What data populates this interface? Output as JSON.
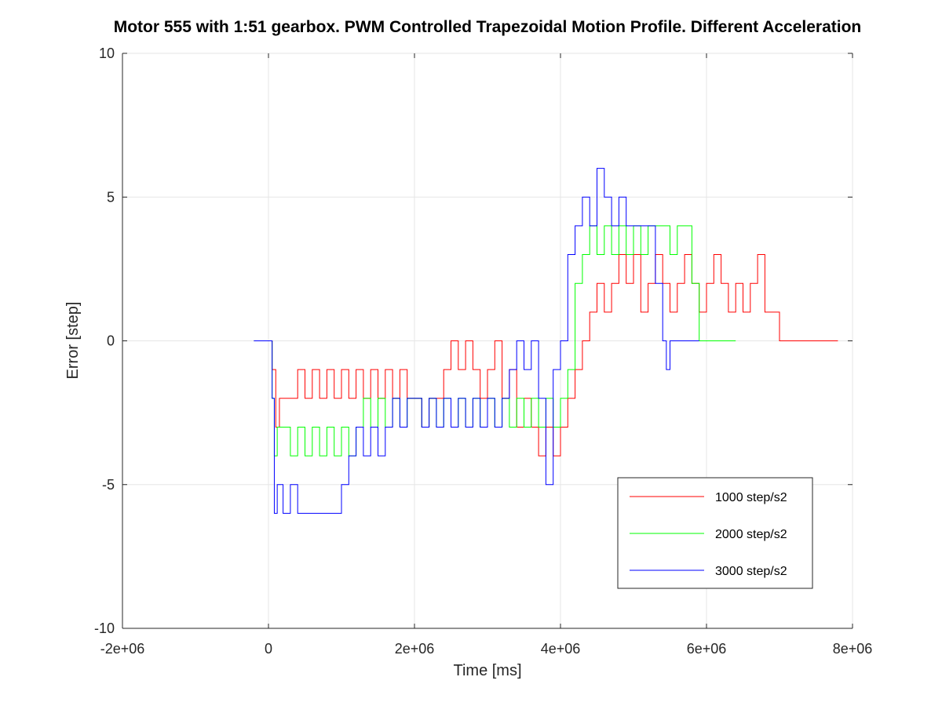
{
  "chart_data": {
    "type": "line",
    "title": "Motor 555 with 1:51 gearbox. PWM Controlled Trapezoidal Motion Profile. Different Acceleration",
    "xlabel": "Time [ms]",
    "ylabel": "Error [step]",
    "xlim": [
      -2000000,
      8000000
    ],
    "ylim": [
      -10,
      10
    ],
    "xticks": [
      -2000000,
      0,
      2000000,
      4000000,
      6000000,
      8000000
    ],
    "xtick_labels": [
      "-2e+06",
      "0",
      "2e+06",
      "4e+06",
      "6e+06",
      "8e+06"
    ],
    "yticks": [
      -10,
      -5,
      0,
      5,
      10
    ],
    "ytick_labels": [
      "-10",
      "-5",
      "0",
      "5",
      "10"
    ],
    "grid": true,
    "legend_position": "bottom-right",
    "series": [
      {
        "name": "1000 step/s2",
        "color": "#ff0000",
        "x": [
          -200000,
          0,
          20000,
          50000,
          100000,
          150000,
          200000,
          300000,
          400000,
          500000,
          600000,
          700000,
          800000,
          900000,
          1000000,
          1100000,
          1200000,
          1300000,
          1400000,
          1500000,
          1600000,
          1700000,
          1800000,
          1900000,
          2000000,
          2100000,
          2200000,
          2300000,
          2400000,
          2500000,
          2600000,
          2700000,
          2800000,
          2900000,
          3000000,
          3100000,
          3200000,
          3300000,
          3400000,
          3500000,
          3600000,
          3700000,
          3800000,
          3900000,
          4000000,
          4100000,
          4200000,
          4300000,
          4400000,
          4500000,
          4600000,
          4700000,
          4800000,
          4900000,
          5000000,
          5100000,
          5200000,
          5300000,
          5400000,
          5500000,
          5600000,
          5700000,
          5800000,
          5900000,
          6000000,
          6100000,
          6200000,
          6300000,
          6400000,
          6500000,
          6600000,
          6700000,
          6800000,
          6900000,
          7000000,
          7100000,
          7400000,
          7800000
        ],
        "y": [
          0,
          0,
          0,
          -1,
          -3,
          -2,
          -2,
          -2,
          -1,
          -2,
          -1,
          -2,
          -1,
          -2,
          -1,
          -2,
          -1,
          -2,
          -1,
          -2,
          -1,
          -2,
          -1,
          -2,
          -2,
          -3,
          -2,
          -2,
          -1,
          0,
          -1,
          0,
          -1,
          -2,
          -1,
          0,
          -2,
          -1,
          -3,
          -2,
          -3,
          -4,
          -3,
          -4,
          -3,
          -2,
          -1,
          0,
          1,
          2,
          1,
          2,
          3,
          2,
          3,
          1,
          2,
          3,
          2,
          1,
          2,
          3,
          2,
          1,
          2,
          3,
          2,
          1,
          2,
          1,
          2,
          3,
          1,
          1,
          0,
          0,
          0,
          0
        ]
      },
      {
        "name": "2000 step/s2",
        "color": "#00ff00",
        "x": [
          -200000,
          0,
          20000,
          50000,
          80000,
          120000,
          200000,
          300000,
          400000,
          500000,
          600000,
          700000,
          800000,
          900000,
          1000000,
          1100000,
          1200000,
          1300000,
          1400000,
          1500000,
          1600000,
          1700000,
          1800000,
          1900000,
          2000000,
          2100000,
          2200000,
          2300000,
          2400000,
          2500000,
          2600000,
          2700000,
          2800000,
          2900000,
          3000000,
          3100000,
          3200000,
          3300000,
          3400000,
          3500000,
          3600000,
          3700000,
          3800000,
          3900000,
          4000000,
          4100000,
          4200000,
          4300000,
          4400000,
          4500000,
          4600000,
          4700000,
          4800000,
          4900000,
          5000000,
          5100000,
          5200000,
          5300000,
          5400000,
          5500000,
          5600000,
          5700000,
          5800000,
          5900000,
          6000000,
          6400000
        ],
        "y": [
          0,
          0,
          0,
          -2,
          -4,
          -3,
          -3,
          -4,
          -3,
          -4,
          -3,
          -4,
          -3,
          -4,
          -3,
          -4,
          -3,
          -2,
          -3,
          -2,
          -3,
          -2,
          -3,
          -2,
          -2,
          -3,
          -2,
          -3,
          -2,
          -3,
          -2,
          -3,
          -2,
          -3,
          -2,
          -3,
          -2,
          -3,
          -2,
          -3,
          -2,
          -3,
          -2,
          -3,
          -2,
          -1,
          2,
          3,
          4,
          3,
          4,
          3,
          4,
          3,
          4,
          3,
          4,
          4,
          4,
          3,
          4,
          4,
          2,
          0,
          0,
          0
        ]
      },
      {
        "name": "3000 step/s2",
        "color": "#0000ff",
        "x": [
          -200000,
          0,
          20000,
          50000,
          80000,
          120000,
          200000,
          300000,
          400000,
          500000,
          600000,
          700000,
          800000,
          900000,
          1000000,
          1100000,
          1200000,
          1300000,
          1400000,
          1500000,
          1600000,
          1700000,
          1800000,
          1900000,
          2000000,
          2100000,
          2200000,
          2300000,
          2400000,
          2500000,
          2600000,
          2700000,
          2800000,
          2900000,
          3000000,
          3100000,
          3200000,
          3300000,
          3400000,
          3500000,
          3600000,
          3700000,
          3800000,
          3900000,
          4000000,
          4100000,
          4200000,
          4300000,
          4400000,
          4500000,
          4600000,
          4700000,
          4800000,
          4900000,
          5000000,
          5100000,
          5200000,
          5300000,
          5400000,
          5450000,
          5500000,
          5600000,
          5700000,
          5800000,
          5900000
        ],
        "y": [
          0,
          0,
          0,
          -2,
          -6,
          -5,
          -6,
          -5,
          -6,
          -6,
          -6,
          -6,
          -6,
          -6,
          -5,
          -4,
          -3,
          -4,
          -3,
          -4,
          -3,
          -2,
          -3,
          -2,
          -2,
          -3,
          -2,
          -3,
          -2,
          -3,
          -2,
          -3,
          -2,
          -3,
          -2,
          -3,
          -2,
          -1,
          0,
          -1,
          0,
          -2,
          -5,
          -1,
          0,
          3,
          4,
          5,
          4,
          6,
          5,
          4,
          5,
          4,
          4,
          4,
          4,
          2,
          0,
          -1,
          0,
          0,
          0,
          0,
          0
        ]
      }
    ]
  }
}
